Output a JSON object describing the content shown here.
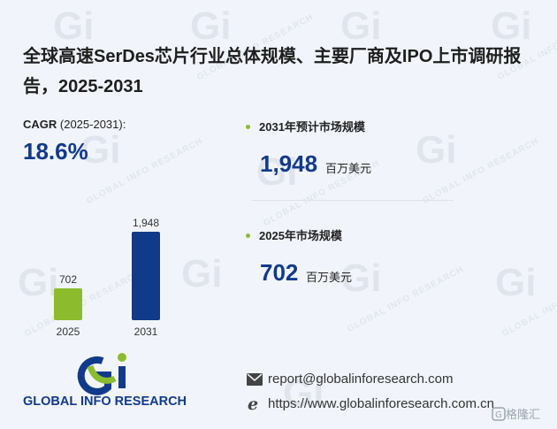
{
  "title": "全球高速SerDes芯片行业总体规模、主要厂商及IPO上市调研报告，2025-2031",
  "cagr": {
    "label": "CAGR",
    "period": " (2025-2031):",
    "value": "18.6%"
  },
  "metrics": [
    {
      "label": "2031年预计市场规模",
      "value": "1,948",
      "unit": "百万美元"
    },
    {
      "label": "2025年市场规模",
      "value": "702",
      "unit": "百万美元"
    }
  ],
  "chart_data": {
    "type": "bar",
    "categories": [
      "2025",
      "2031"
    ],
    "values": [
      702,
      1948
    ],
    "data_labels": [
      "702",
      "1,948"
    ],
    "colors": [
      "#8cbc2e",
      "#123a8a"
    ],
    "title": "",
    "xlabel": "",
    "ylabel": ""
  },
  "logo": {
    "text": "GLOBAL INFO RESEARCH",
    "mark": "Gi",
    "colors": [
      "#123a8a",
      "#8cbc2e"
    ]
  },
  "contact": {
    "email": "report@globalinforesearch.com",
    "website": "https://www.globalinforesearch.com.cn"
  },
  "watermark": {
    "mark": "Gi",
    "text": "GLOBAL INFO RESEARCH",
    "corner": "格隆汇"
  }
}
